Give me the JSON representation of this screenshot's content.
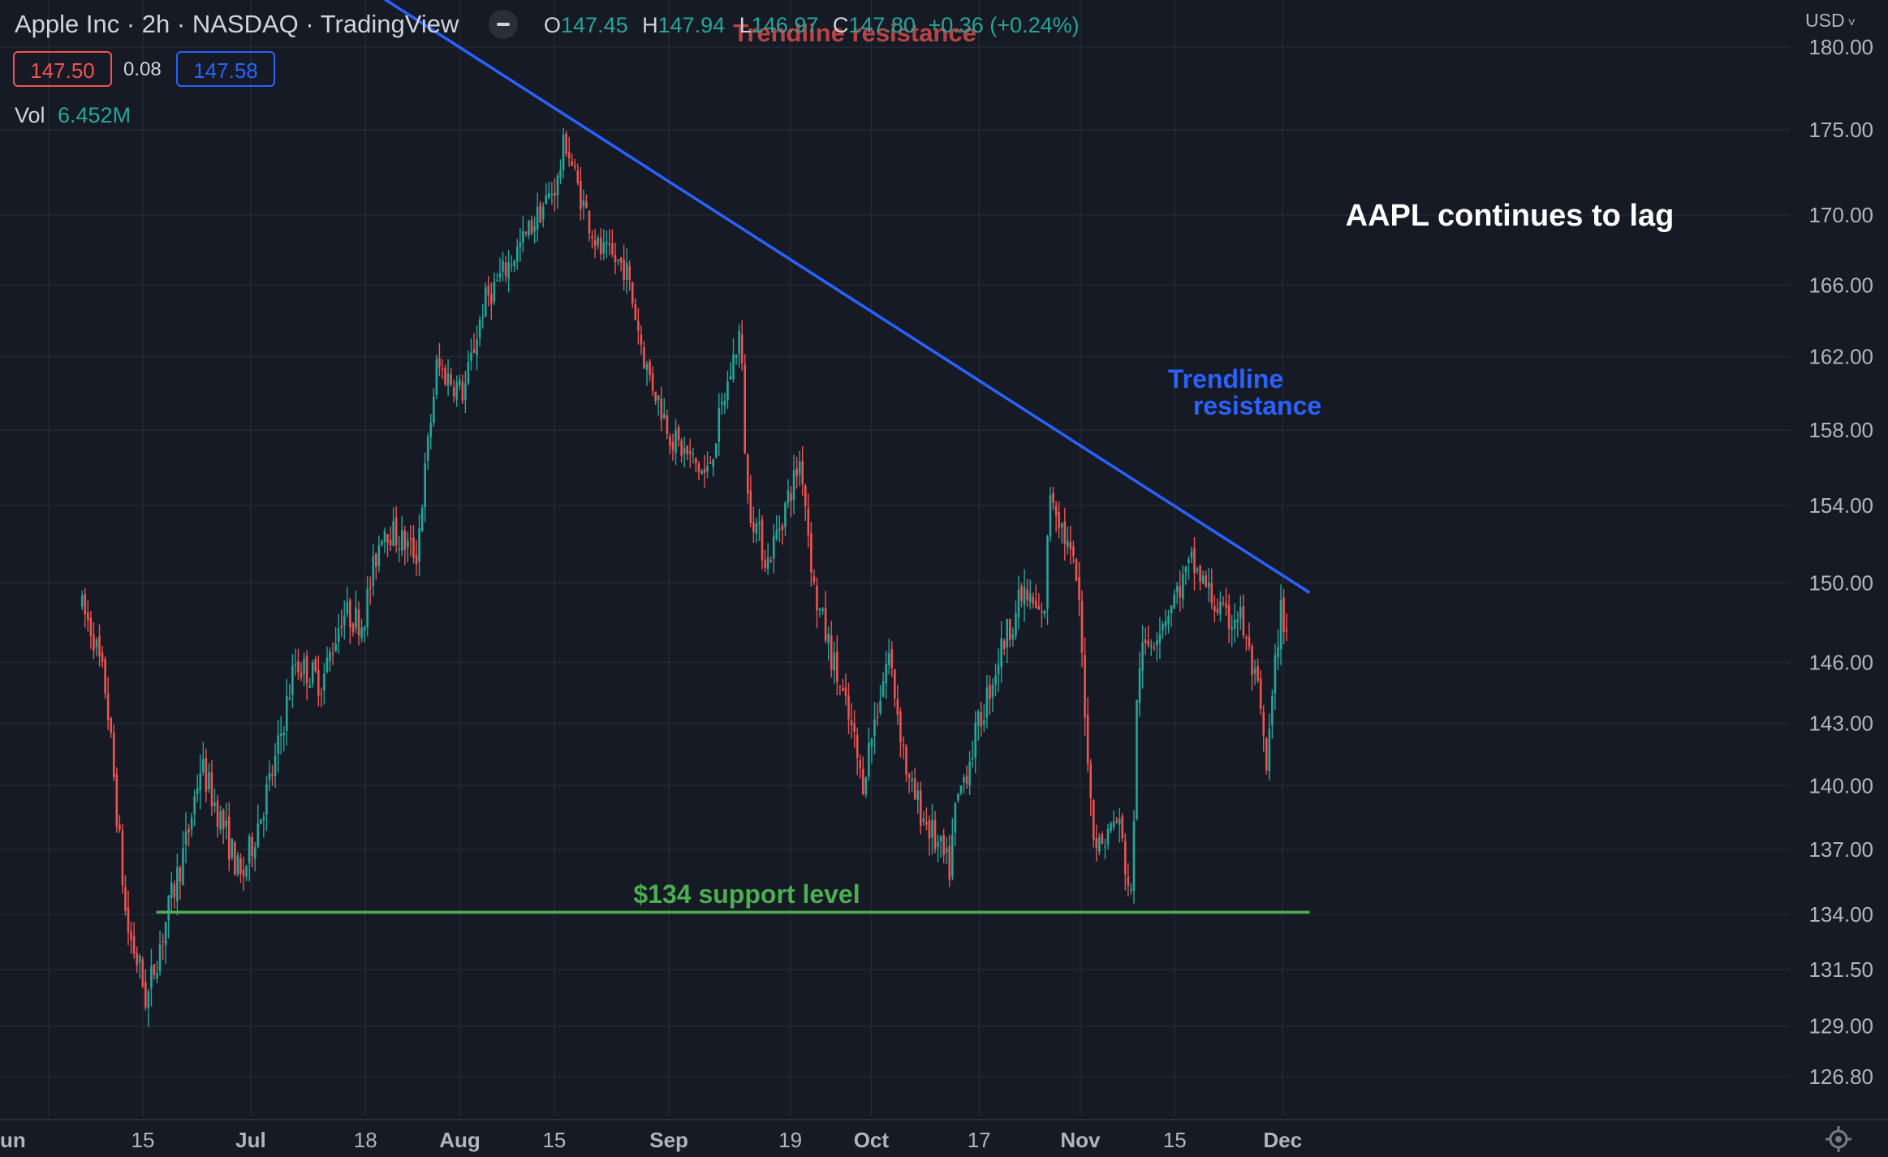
{
  "header": {
    "title": "Apple Inc · 2h · NASDAQ · TradingView",
    "ohlc": {
      "o_label": "O",
      "o": "147.45",
      "h_label": "H",
      "h": "147.94",
      "l_label": "L",
      "l": "146.97",
      "c_label": "C",
      "c": "147.80",
      "change": "+0.36 (+0.24%)"
    },
    "bid": "147.50",
    "spread": "0.08",
    "ask": "147.58",
    "vol_label": "Vol",
    "vol_value": "6.452M",
    "currency": "USD"
  },
  "colors": {
    "background": "#161a25",
    "up": "#26a69a",
    "down": "#ef5350",
    "trendline": "#2962ff",
    "support": "#4caf50"
  },
  "chart_data": {
    "type": "candlestick",
    "title": "AAPL continues to lag",
    "x_ticks": [
      "Jun",
      "15",
      "Jul",
      "18",
      "Aug",
      "15",
      "Sep",
      "19",
      "Oct",
      "17",
      "Nov",
      "15",
      "Dec"
    ],
    "y_ticks": [
      180.0,
      175.0,
      170.0,
      166.0,
      162.0,
      158.0,
      154.0,
      150.0,
      146.0,
      143.0,
      140.0,
      137.0,
      134.0,
      131.5,
      129.0,
      126.8
    ],
    "y_range": [
      125,
      181
    ],
    "y_scale": "log",
    "grid": true,
    "price_path": [
      [
        "Jun 6",
        149
      ],
      [
        "Jun 8",
        147.5
      ],
      [
        "Jun 10",
        144.5
      ],
      [
        "Jun 13",
        133.5
      ],
      [
        "Jun 15",
        131.5
      ],
      [
        "Jun 16",
        130
      ],
      [
        "Jun 17",
        131.5
      ],
      [
        "Jun 22",
        137.5
      ],
      [
        "Jun 24",
        141
      ],
      [
        "Jun 28",
        137.5
      ],
      [
        "Jun 30",
        135.5
      ],
      [
        "Jul 5",
        141
      ],
      [
        "Jul 8",
        146
      ],
      [
        "Jul 12",
        145
      ],
      [
        "Jul 15",
        148.5
      ],
      [
        "Jul 18",
        148
      ],
      [
        "Jul 21",
        153
      ],
      [
        "Jul 26",
        151.5
      ],
      [
        "Jul 29",
        161.5
      ],
      [
        "Aug 2",
        160
      ],
      [
        "Aug 5",
        165
      ],
      [
        "Aug 10",
        168
      ],
      [
        "Aug 16",
        172
      ],
      [
        "Aug 17",
        174.5
      ],
      [
        "Aug 19",
        171.5
      ],
      [
        "Aug 22",
        168
      ],
      [
        "Aug 26",
        167
      ],
      [
        "Aug 29",
        161.5
      ],
      [
        "Sep 2",
        157.5
      ],
      [
        "Sep 7",
        155.5
      ],
      [
        "Sep 12",
        163.5
      ],
      [
        "Sep 13",
        154.5
      ],
      [
        "Sep 16",
        151
      ],
      [
        "Sep 21",
        156.5
      ],
      [
        "Sep 23",
        149.5
      ],
      [
        "Sep 29",
        142
      ],
      [
        "Sep 30",
        140
      ],
      [
        "Oct 4",
        146.5
      ],
      [
        "Oct 7",
        140
      ],
      [
        "Oct 13",
        136
      ],
      [
        "Oct 14",
        139
      ],
      [
        "Oct 17",
        142.5
      ],
      [
        "Oct 21",
        147
      ],
      [
        "Oct 24",
        149.5
      ],
      [
        "Oct 27",
        148
      ],
      [
        "Oct 28",
        155
      ],
      [
        "Nov 1",
        150
      ],
      [
        "Nov 3",
        139
      ],
      [
        "Nov 4",
        137
      ],
      [
        "Nov 7",
        138.5
      ],
      [
        "Nov 9",
        134.5
      ],
      [
        "Nov 10",
        146
      ],
      [
        "Nov 15",
        149
      ],
      [
        "Nov 18",
        151
      ],
      [
        "Nov 23",
        148
      ],
      [
        "Nov 25",
        148.5
      ],
      [
        "Nov 28",
        144
      ],
      [
        "Nov 29",
        140.5
      ],
      [
        "Dec 1",
        148.5
      ],
      [
        "Dec 2",
        147.8
      ]
    ],
    "annotations": [
      {
        "text": "AAPL continues to lag",
        "color": "#ffffff"
      },
      {
        "text": "Trendline",
        "color": "#2962ff"
      },
      {
        "text": "resistance",
        "color": "#2962ff"
      },
      {
        "text": "Trendline resistance",
        "color": "#ef5350"
      },
      {
        "text": "$134 support level",
        "color": "#4caf50"
      }
    ],
    "lines": [
      {
        "name": "Trendline resistance",
        "kind": "trendline",
        "from": [
          "Jul 26",
          181.5
        ],
        "to": [
          "Dec 5",
          149.5
        ]
      },
      {
        "name": "$134 support level",
        "kind": "horizontal",
        "value": 134.1,
        "from": "Jun 17",
        "to": "Dec 5"
      }
    ]
  }
}
